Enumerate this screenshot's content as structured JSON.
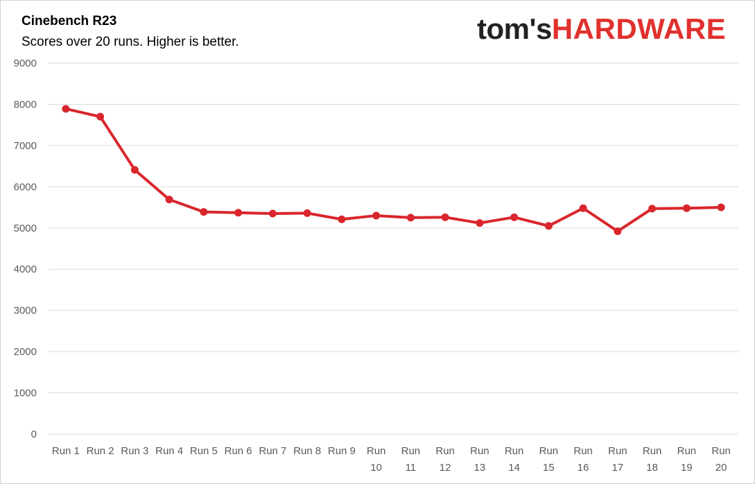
{
  "chart_data": {
    "type": "line",
    "title": "Cinebench R23",
    "subtitle": "Scores over 20 runs. Higher is better.",
    "categories": [
      [
        "Run 1"
      ],
      [
        "Run 2"
      ],
      [
        "Run 3"
      ],
      [
        "Run 4"
      ],
      [
        "Run 5"
      ],
      [
        "Run 6"
      ],
      [
        "Run 7"
      ],
      [
        "Run 8"
      ],
      [
        "Run 9"
      ],
      [
        "Run",
        "10"
      ],
      [
        "Run",
        "11"
      ],
      [
        "Run",
        "12"
      ],
      [
        "Run",
        "13"
      ],
      [
        "Run",
        "14"
      ],
      [
        "Run",
        "15"
      ],
      [
        "Run",
        "16"
      ],
      [
        "Run",
        "17"
      ],
      [
        "Run",
        "18"
      ],
      [
        "Run",
        "19"
      ],
      [
        "Run",
        "20"
      ]
    ],
    "series": [
      {
        "values": [
          7890,
          7700,
          6410,
          5690,
          5390,
          5370,
          5350,
          5360,
          5210,
          5300,
          5250,
          5260,
          5120,
          5260,
          5050,
          5480,
          4920,
          5470,
          5480,
          5500
        ]
      }
    ],
    "ylim": [
      0,
      9000
    ],
    "yticks": [
      0,
      1000,
      2000,
      3000,
      4000,
      5000,
      6000,
      7000,
      8000,
      9000
    ],
    "grid": true,
    "line_color": "#d9262c",
    "grid_color": "#d9d9d9",
    "xlabel": "",
    "ylabel": ""
  },
  "logo": {
    "part1": "tom's",
    "part2": "HARDWARE"
  }
}
